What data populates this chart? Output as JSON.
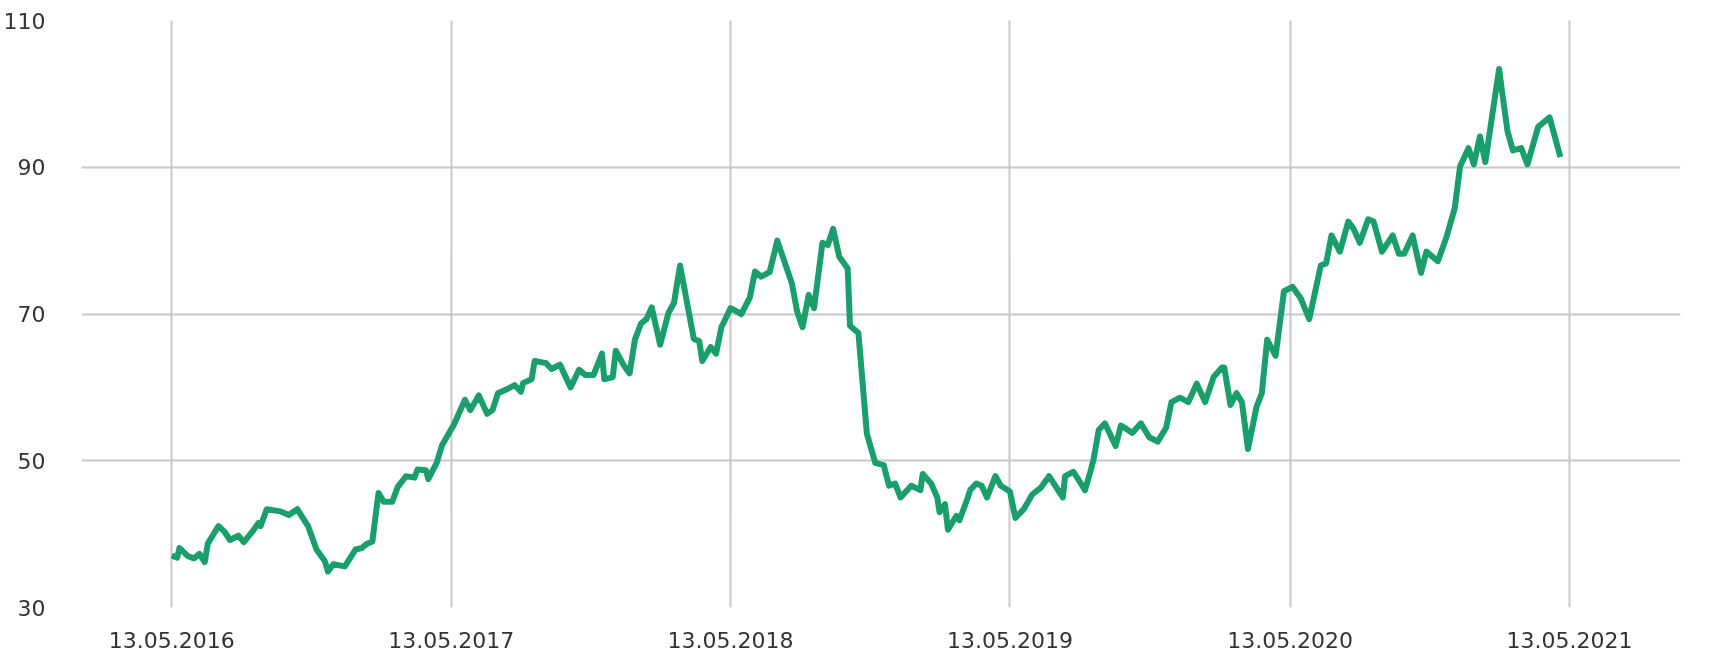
{
  "chart_data": {
    "type": "line",
    "x": [
      "2016-05-13",
      "2016-05-20",
      "2016-05-23",
      "2016-06-03",
      "2016-06-11",
      "2016-06-18",
      "2016-06-25",
      "2016-06-29",
      "2016-07-13",
      "2016-07-21",
      "2016-07-28",
      "2016-08-08",
      "2016-08-15",
      "2016-08-26",
      "2016-09-03",
      "2016-09-06",
      "2016-09-14",
      "2016-10-02",
      "2016-10-13",
      "2016-10-24",
      "2016-11-07",
      "2016-11-18",
      "2016-11-29",
      "2016-12-03",
      "2016-12-10",
      "2016-12-25",
      "2017-01-08",
      "2017-01-16",
      "2017-01-23",
      "2017-01-30",
      "2017-02-07",
      "2017-02-14",
      "2017-02-25",
      "2017-03-04",
      "2017-03-15",
      "2017-03-26",
      "2017-03-30",
      "2017-04-10",
      "2017-04-13",
      "2017-04-24",
      "2017-05-01",
      "2017-05-13",
      "2017-05-16",
      "2017-05-31",
      "2017-06-07",
      "2017-06-18",
      "2017-06-29",
      "2017-07-06",
      "2017-07-13",
      "2017-07-24",
      "2017-08-04",
      "2017-08-12",
      "2017-08-15",
      "2017-08-26",
      "2017-08-30",
      "2017-09-14",
      "2017-09-21",
      "2017-10-02",
      "2017-10-16",
      "2017-10-27",
      "2017-11-04",
      "2017-11-15",
      "2017-11-26",
      "2017-11-29",
      "2017-12-10",
      "2017-12-14",
      "2017-12-25",
      "2018-01-01",
      "2018-01-08",
      "2018-01-16",
      "2018-01-23",
      "2018-01-30",
      "2018-02-10",
      "2018-02-21",
      "2018-02-28",
      "2018-03-08",
      "2018-03-26",
      "2018-04-02",
      "2018-04-06",
      "2018-04-17",
      "2018-04-24",
      "2018-05-01",
      "2018-05-13",
      "2018-05-27",
      "2018-06-07",
      "2018-06-14",
      "2018-06-22",
      "2018-07-03",
      "2018-07-13",
      "2018-08-01",
      "2018-08-08",
      "2018-08-15",
      "2018-08-23",
      "2018-08-30",
      "2018-09-10",
      "2018-09-17",
      "2018-09-24",
      "2018-10-02",
      "2018-10-13",
      "2018-10-16",
      "2018-10-27",
      "2018-11-07",
      "2018-11-18",
      "2018-11-29",
      "2018-12-06",
      "2018-12-14",
      "2018-12-21",
      "2019-01-04",
      "2019-01-16",
      "2019-01-19",
      "2019-01-30",
      "2019-02-07",
      "2019-02-10",
      "2019-02-17",
      "2019-02-21",
      "2019-03-04",
      "2019-03-08",
      "2019-03-19",
      "2019-03-22",
      "2019-03-30",
      "2019-04-06",
      "2019-04-13",
      "2019-04-24",
      "2019-05-01",
      "2019-05-13",
      "2019-05-20",
      "2019-05-31",
      "2019-06-11",
      "2019-06-22",
      "2019-07-03",
      "2019-07-21",
      "2019-07-24",
      "2019-08-04",
      "2019-08-19",
      "2019-08-26",
      "2019-08-30",
      "2019-09-06",
      "2019-09-14",
      "2019-09-28",
      "2019-10-05",
      "2019-10-20",
      "2019-10-31",
      "2019-11-11",
      "2019-11-22",
      "2019-12-03",
      "2019-12-10",
      "2019-12-21",
      "2020-01-01",
      "2020-01-12",
      "2020-01-23",
      "2020-02-03",
      "2020-02-14",
      "2020-02-17",
      "2020-02-25",
      "2020-03-04",
      "2020-03-11",
      "2020-03-19",
      "2020-03-30",
      "2020-04-06",
      "2020-04-13",
      "2020-04-24",
      "2020-05-05",
      "2020-05-16",
      "2020-05-27",
      "2020-06-07",
      "2020-06-22",
      "2020-06-29",
      "2020-07-06",
      "2020-07-17",
      "2020-07-28",
      "2020-08-04",
      "2020-08-12",
      "2020-08-23",
      "2020-08-30",
      "2020-09-10",
      "2020-09-24",
      "2020-10-02",
      "2020-10-09",
      "2020-10-20",
      "2020-10-31",
      "2020-11-07",
      "2020-11-22",
      "2020-12-03",
      "2020-12-14",
      "2020-12-21",
      "2021-01-01",
      "2021-01-08",
      "2021-01-16",
      "2021-01-23",
      "2021-02-10",
      "2021-02-14",
      "2021-02-21",
      "2021-02-28",
      "2021-03-11",
      "2021-03-19",
      "2021-04-02",
      "2021-04-10",
      "2021-04-17",
      "2021-05-01"
    ],
    "series": [
      {
        "color": "#1a9e6c",
        "values": [
          37.1,
          36.8,
          38.1,
          37,
          36.7,
          37.3,
          36.2,
          38.7,
          41.1,
          40.3,
          39.2,
          39.8,
          38.9,
          40.3,
          41.5,
          41.1,
          43.4,
          43.1,
          42.6,
          43.4,
          41.1,
          37.9,
          36.3,
          34.9,
          35.9,
          35.6,
          37.9,
          38.1,
          38.7,
          39,
          45.6,
          44.4,
          44.4,
          46.4,
          47.9,
          47.7,
          48.8,
          48.7,
          47.5,
          49.7,
          52.1,
          54.3,
          54.8,
          58.3,
          56.9,
          58.9,
          56.4,
          56.9,
          59.2,
          59.7,
          60.3,
          59.4,
          60.6,
          61.1,
          63.6,
          63.3,
          62.5,
          63.1,
          60,
          62.4,
          61.7,
          61.7,
          64.6,
          61.1,
          61.4,
          65,
          62.9,
          61.9,
          66.5,
          68.7,
          69.3,
          70.9,
          65.8,
          70.2,
          71.5,
          76.6,
          66.6,
          66.3,
          63.6,
          65.5,
          64.6,
          68.2,
          70.8,
          70,
          72.2,
          75.8,
          75.1,
          75.7,
          80,
          74.2,
          70.3,
          68.2,
          72.6,
          70.8,
          79.7,
          79.4,
          81.6,
          77.8,
          76.2,
          68.4,
          67.4,
          53.7,
          49.7,
          49.4,
          46.6,
          46.9,
          45,
          46.6,
          46,
          48.2,
          46.9,
          45,
          43,
          44.1,
          40.6,
          42.5,
          41.9,
          45,
          46,
          46.9,
          46.6,
          45,
          47.9,
          46.6,
          45.8,
          42.2,
          43.4,
          45.4,
          46.3,
          47.9,
          45,
          47.9,
          48.5,
          46,
          48.5,
          50.1,
          54.2,
          55.1,
          52,
          54.8,
          53.8,
          55.1,
          53.2,
          52.6,
          54.5,
          58,
          58.6,
          58,
          60.5,
          58,
          61.4,
          62.7,
          62.7,
          57.6,
          59.2,
          58,
          51.6,
          57.3,
          59.2,
          66.5,
          64.3,
          73.1,
          73.7,
          72.1,
          69.3,
          76.6,
          76.9,
          80.7,
          78.5,
          82.6,
          81.6,
          79.7,
          82.9,
          82.6,
          78.5,
          80.7,
          78.2,
          78.2,
          80.7,
          75.6,
          78.5,
          77.2,
          80.4,
          84.4,
          90.1,
          92.6,
          90.4,
          94.2,
          90.7,
          103.4,
          100.2,
          94.9,
          92.3,
          92.6,
          90.4,
          95.5,
          96.2,
          96.8,
          91.4
        ]
      }
    ],
    "xlim": [
      "2016-01-16",
      "2021-10-05"
    ],
    "xticks": [
      {
        "value": "2016-05-13",
        "label": "13.05.2016"
      },
      {
        "value": "2017-05-13",
        "label": "13.05.2017"
      },
      {
        "value": "2018-05-13",
        "label": "13.05.2018"
      },
      {
        "value": "2019-05-13",
        "label": "13.05.2019"
      },
      {
        "value": "2020-05-13",
        "label": "13.05.2020"
      },
      {
        "value": "2021-05-13",
        "label": "13.05.2021"
      }
    ],
    "ylim": [
      30,
      110
    ],
    "yticks": [
      30,
      50,
      70,
      90,
      110
    ],
    "grid": true,
    "line_style": "solid",
    "marker": "none"
  }
}
